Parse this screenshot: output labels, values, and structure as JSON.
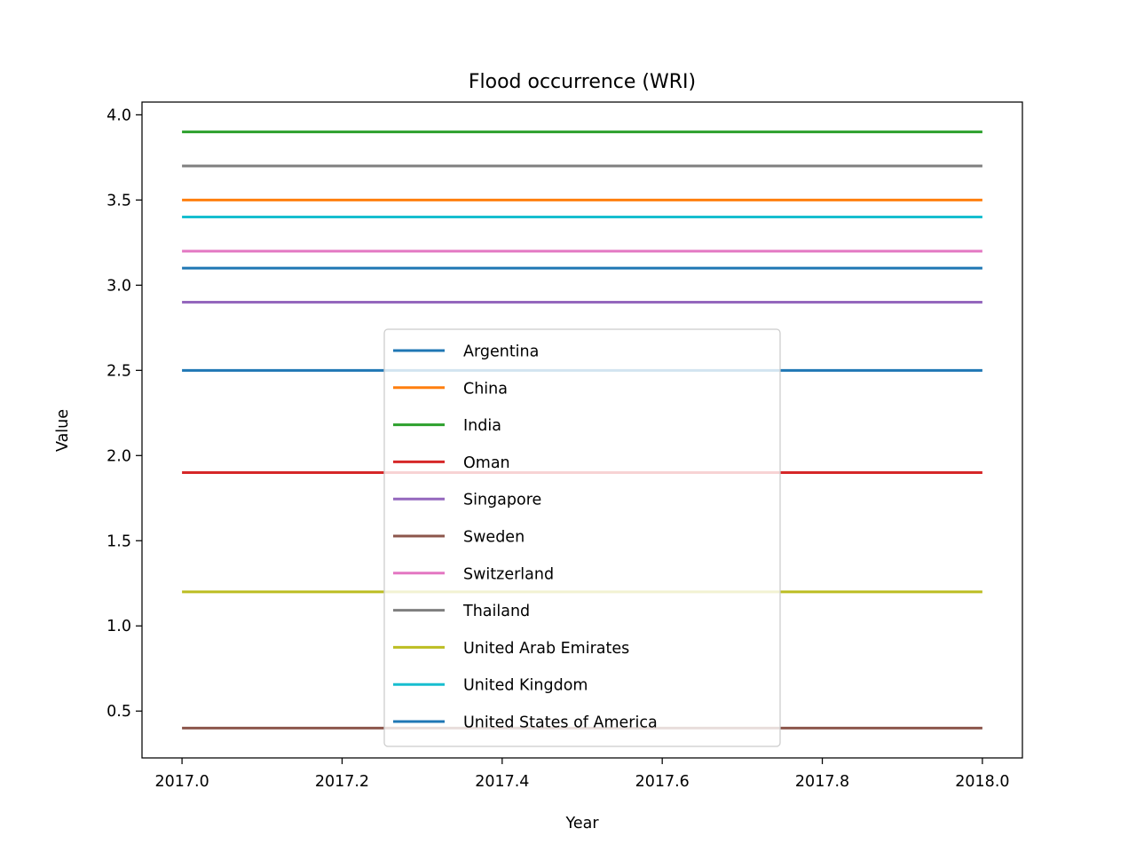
{
  "chart_data": {
    "type": "line",
    "title": "Flood occurrence (WRI)",
    "xlabel": "Year",
    "ylabel": "Value",
    "xlim": [
      2016.95,
      2018.05
    ],
    "ylim": [
      0.225,
      4.075
    ],
    "xticks": [
      2017.0,
      2017.2,
      2017.4,
      2017.6,
      2017.8,
      2018.0
    ],
    "xtick_labels": [
      "2017.0",
      "2017.2",
      "2017.4",
      "2017.6",
      "2017.8",
      "2018.0"
    ],
    "yticks": [
      0.5,
      1.0,
      1.5,
      2.0,
      2.5,
      3.0,
      3.5,
      4.0
    ],
    "ytick_labels": [
      "0.5",
      "1.0",
      "1.5",
      "2.0",
      "2.5",
      "3.0",
      "3.5",
      "4.0"
    ],
    "grid": false,
    "legend_position": "lower-center",
    "x": [
      2017,
      2018
    ],
    "series": [
      {
        "name": "Argentina",
        "color": "#1f77b4",
        "values": [
          2.5,
          2.5
        ]
      },
      {
        "name": "China",
        "color": "#ff7f0e",
        "values": [
          3.5,
          3.5
        ]
      },
      {
        "name": "India",
        "color": "#2ca02c",
        "values": [
          3.9,
          3.9
        ]
      },
      {
        "name": "Oman",
        "color": "#d62728",
        "values": [
          1.9,
          1.9
        ]
      },
      {
        "name": "Singapore",
        "color": "#9467bd",
        "values": [
          2.9,
          2.9
        ]
      },
      {
        "name": "Sweden",
        "color": "#8c564b",
        "values": [
          0.4,
          0.4
        ]
      },
      {
        "name": "Switzerland",
        "color": "#e377c2",
        "values": [
          3.2,
          3.2
        ]
      },
      {
        "name": "Thailand",
        "color": "#7f7f7f",
        "values": [
          3.7,
          3.7
        ]
      },
      {
        "name": "United Arab Emirates",
        "color": "#bcbd22",
        "values": [
          1.2,
          1.2
        ]
      },
      {
        "name": "United Kingdom",
        "color": "#17becf",
        "values": [
          3.4,
          3.4
        ]
      },
      {
        "name": "United States of America",
        "color": "#1f77b4",
        "values": [
          3.1,
          3.1
        ]
      }
    ]
  }
}
